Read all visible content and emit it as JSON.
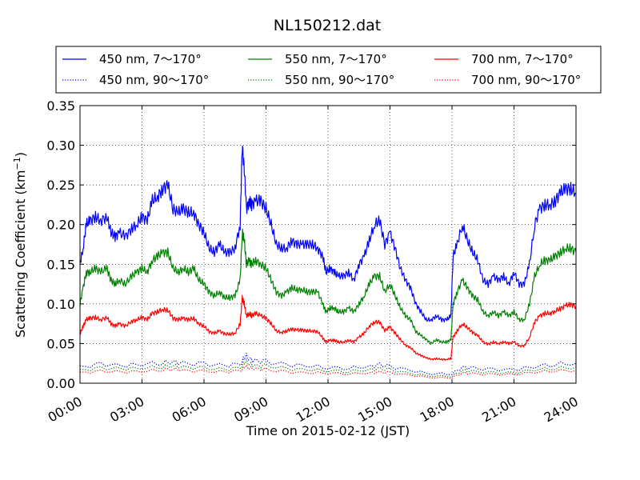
{
  "chart_data": {
    "type": "line",
    "title": "NL150212.dat",
    "xlabel": "Time on 2015-02-12 (JST)",
    "ylabel": "Scattering Coefficient (km",
    "ylabel_sup": "−1",
    "ylabel_close": ")",
    "xlim": [
      0,
      24
    ],
    "ylim": [
      0,
      0.35
    ],
    "grid": true,
    "legend_position": "top, outside plot, 3 columns",
    "x_ticks": [
      0,
      3,
      6,
      9,
      12,
      15,
      18,
      21,
      24
    ],
    "x_tick_labels": [
      "00:00",
      "03:00",
      "06:00",
      "09:00",
      "12:00",
      "15:00",
      "18:00",
      "21:00",
      "24:00"
    ],
    "y_ticks": [
      0,
      0.05,
      0.1,
      0.15,
      0.2,
      0.25,
      0.3,
      0.35
    ],
    "y_tick_labels": [
      "0.00",
      "0.05",
      "0.10",
      "0.15",
      "0.20",
      "0.25",
      "0.30",
      "0.35"
    ],
    "x_unit": "hour of day",
    "series": [
      {
        "name": "450 nm, 7～170°",
        "color": "#0000ff",
        "style": "solid",
        "x": [
          0,
          0.15,
          0.3,
          0.5,
          0.75,
          1.0,
          1.3,
          1.5,
          1.7,
          1.9,
          2.2,
          2.5,
          2.75,
          3.0,
          3.25,
          3.5,
          3.75,
          4.0,
          4.25,
          4.5,
          4.75,
          5.0,
          5.25,
          5.5,
          5.75,
          6.0,
          6.25,
          6.5,
          6.75,
          7.0,
          7.25,
          7.5,
          7.75,
          7.85,
          7.95,
          8.05,
          8.2,
          8.3,
          8.5,
          8.75,
          9.0,
          9.25,
          9.5,
          9.75,
          10.0,
          10.25,
          10.5,
          10.75,
          11.0,
          11.25,
          11.5,
          11.75,
          11.9,
          12.1,
          12.3,
          12.5,
          12.75,
          13.0,
          13.25,
          13.5,
          13.75,
          14.0,
          14.25,
          14.5,
          14.75,
          15.0,
          15.25,
          15.5,
          15.75,
          16.0,
          16.25,
          16.5,
          16.75,
          17.0,
          17.25,
          17.5,
          17.75,
          17.95,
          18.05,
          18.25,
          18.5,
          18.75,
          19.0,
          19.25,
          19.5,
          19.75,
          20.0,
          20.25,
          20.5,
          20.75,
          21.0,
          21.25,
          21.5,
          21.75,
          22.0,
          22.25,
          22.5,
          22.75,
          23.0,
          23.25,
          23.5,
          23.75,
          24.0
        ],
        "values": [
          0.15,
          0.17,
          0.2,
          0.205,
          0.21,
          0.205,
          0.21,
          0.19,
          0.185,
          0.19,
          0.185,
          0.195,
          0.2,
          0.21,
          0.205,
          0.23,
          0.235,
          0.245,
          0.25,
          0.22,
          0.215,
          0.22,
          0.215,
          0.215,
          0.2,
          0.19,
          0.17,
          0.165,
          0.175,
          0.165,
          0.165,
          0.17,
          0.2,
          0.3,
          0.27,
          0.22,
          0.23,
          0.225,
          0.23,
          0.23,
          0.22,
          0.2,
          0.175,
          0.17,
          0.17,
          0.18,
          0.175,
          0.175,
          0.175,
          0.175,
          0.17,
          0.16,
          0.14,
          0.145,
          0.14,
          0.135,
          0.135,
          0.14,
          0.13,
          0.15,
          0.16,
          0.18,
          0.2,
          0.205,
          0.175,
          0.19,
          0.17,
          0.145,
          0.13,
          0.12,
          0.1,
          0.09,
          0.08,
          0.08,
          0.085,
          0.08,
          0.08,
          0.085,
          0.16,
          0.175,
          0.2,
          0.18,
          0.165,
          0.155,
          0.13,
          0.125,
          0.135,
          0.13,
          0.135,
          0.125,
          0.14,
          0.125,
          0.125,
          0.15,
          0.2,
          0.22,
          0.225,
          0.225,
          0.23,
          0.24,
          0.245,
          0.245,
          0.24
        ]
      },
      {
        "name": "550 nm, 7～170°",
        "color": "#008000",
        "style": "solid",
        "x": [
          0,
          0.15,
          0.3,
          0.5,
          0.75,
          1.0,
          1.3,
          1.5,
          1.7,
          1.9,
          2.2,
          2.5,
          2.75,
          3.0,
          3.25,
          3.5,
          3.75,
          4.0,
          4.25,
          4.5,
          4.75,
          5.0,
          5.25,
          5.5,
          5.75,
          6.0,
          6.25,
          6.5,
          6.75,
          7.0,
          7.25,
          7.5,
          7.75,
          7.85,
          7.95,
          8.05,
          8.2,
          8.3,
          8.5,
          8.75,
          9.0,
          9.25,
          9.5,
          9.75,
          10.0,
          10.25,
          10.5,
          10.75,
          11.0,
          11.25,
          11.5,
          11.75,
          11.9,
          12.1,
          12.3,
          12.5,
          12.75,
          13.0,
          13.25,
          13.5,
          13.75,
          14.0,
          14.25,
          14.5,
          14.75,
          15.0,
          15.25,
          15.5,
          15.75,
          16.0,
          16.25,
          16.5,
          16.75,
          17.0,
          17.25,
          17.5,
          17.75,
          17.95,
          18.05,
          18.25,
          18.5,
          18.75,
          19.0,
          19.25,
          19.5,
          19.75,
          20.0,
          20.25,
          20.5,
          20.75,
          21.0,
          21.25,
          21.5,
          21.75,
          22.0,
          22.25,
          22.5,
          22.75,
          23.0,
          23.25,
          23.5,
          23.75,
          24.0
        ],
        "values": [
          0.1,
          0.12,
          0.14,
          0.14,
          0.145,
          0.14,
          0.145,
          0.13,
          0.125,
          0.13,
          0.125,
          0.135,
          0.14,
          0.145,
          0.14,
          0.155,
          0.16,
          0.165,
          0.165,
          0.145,
          0.14,
          0.145,
          0.14,
          0.145,
          0.13,
          0.125,
          0.115,
          0.11,
          0.115,
          0.108,
          0.108,
          0.11,
          0.13,
          0.19,
          0.18,
          0.15,
          0.155,
          0.15,
          0.155,
          0.15,
          0.145,
          0.13,
          0.115,
          0.11,
          0.115,
          0.12,
          0.118,
          0.118,
          0.115,
          0.115,
          0.115,
          0.1,
          0.09,
          0.095,
          0.095,
          0.09,
          0.09,
          0.095,
          0.09,
          0.1,
          0.11,
          0.125,
          0.135,
          0.135,
          0.115,
          0.125,
          0.11,
          0.095,
          0.085,
          0.08,
          0.065,
          0.06,
          0.055,
          0.05,
          0.055,
          0.052,
          0.052,
          0.055,
          0.1,
          0.115,
          0.13,
          0.12,
          0.11,
          0.105,
          0.09,
          0.085,
          0.09,
          0.085,
          0.09,
          0.085,
          0.09,
          0.08,
          0.08,
          0.1,
          0.135,
          0.15,
          0.155,
          0.155,
          0.16,
          0.165,
          0.17,
          0.17,
          0.165
        ]
      },
      {
        "name": "700 nm, 7～170°",
        "color": "#ff0000",
        "style": "solid",
        "x": [
          0,
          0.15,
          0.3,
          0.5,
          0.75,
          1.0,
          1.3,
          1.5,
          1.7,
          1.9,
          2.2,
          2.5,
          2.75,
          3.0,
          3.25,
          3.5,
          3.75,
          4.0,
          4.25,
          4.5,
          4.75,
          5.0,
          5.25,
          5.5,
          5.75,
          6.0,
          6.25,
          6.5,
          6.75,
          7.0,
          7.25,
          7.5,
          7.75,
          7.85,
          7.95,
          8.05,
          8.2,
          8.3,
          8.5,
          8.75,
          9.0,
          9.25,
          9.5,
          9.75,
          10.0,
          10.25,
          10.5,
          10.75,
          11.0,
          11.25,
          11.5,
          11.75,
          11.9,
          12.1,
          12.3,
          12.5,
          12.75,
          13.0,
          13.25,
          13.5,
          13.75,
          14.0,
          14.25,
          14.5,
          14.75,
          15.0,
          15.25,
          15.5,
          15.75,
          16.0,
          16.25,
          16.5,
          16.75,
          17.0,
          17.25,
          17.5,
          17.75,
          17.95,
          18.05,
          18.25,
          18.5,
          18.75,
          19.0,
          19.25,
          19.5,
          19.75,
          20.0,
          20.25,
          20.5,
          20.75,
          21.0,
          21.25,
          21.5,
          21.75,
          22.0,
          22.25,
          22.5,
          22.75,
          23.0,
          23.25,
          23.5,
          23.75,
          24.0
        ],
        "values": [
          0.062,
          0.072,
          0.08,
          0.082,
          0.083,
          0.08,
          0.083,
          0.075,
          0.072,
          0.075,
          0.072,
          0.078,
          0.08,
          0.083,
          0.08,
          0.088,
          0.09,
          0.093,
          0.092,
          0.082,
          0.08,
          0.082,
          0.08,
          0.082,
          0.075,
          0.072,
          0.065,
          0.063,
          0.066,
          0.062,
          0.062,
          0.063,
          0.075,
          0.107,
          0.1,
          0.085,
          0.088,
          0.085,
          0.088,
          0.085,
          0.082,
          0.075,
          0.066,
          0.064,
          0.066,
          0.068,
          0.067,
          0.067,
          0.066,
          0.066,
          0.065,
          0.057,
          0.052,
          0.054,
          0.054,
          0.052,
          0.052,
          0.054,
          0.052,
          0.058,
          0.063,
          0.072,
          0.077,
          0.077,
          0.066,
          0.071,
          0.063,
          0.055,
          0.048,
          0.045,
          0.038,
          0.035,
          0.032,
          0.03,
          0.031,
          0.03,
          0.03,
          0.031,
          0.058,
          0.066,
          0.075,
          0.07,
          0.064,
          0.06,
          0.052,
          0.049,
          0.052,
          0.05,
          0.052,
          0.05,
          0.052,
          0.047,
          0.047,
          0.058,
          0.077,
          0.085,
          0.088,
          0.088,
          0.091,
          0.094,
          0.098,
          0.099,
          0.097
        ]
      },
      {
        "name": "450 nm, 90～170°",
        "color": "#0000ff",
        "style": "dotted",
        "x": [
          0,
          1,
          2,
          3,
          4,
          4.5,
          5,
          6,
          7,
          7.8,
          8.0,
          8.2,
          8.5,
          9,
          10,
          11,
          12,
          13,
          14,
          14.5,
          15,
          16,
          17,
          18,
          18.5,
          19,
          20,
          21,
          22,
          23,
          24
        ],
        "values": [
          0.02,
          0.024,
          0.022,
          0.024,
          0.026,
          0.027,
          0.025,
          0.024,
          0.022,
          0.025,
          0.035,
          0.03,
          0.028,
          0.027,
          0.023,
          0.022,
          0.02,
          0.019,
          0.021,
          0.023,
          0.021,
          0.016,
          0.012,
          0.012,
          0.02,
          0.019,
          0.017,
          0.017,
          0.021,
          0.024,
          0.025
        ]
      },
      {
        "name": "550 nm, 90～170°",
        "color": "#008000",
        "style": "dotted",
        "x": [
          0,
          1,
          2,
          3,
          4,
          4.5,
          5,
          6,
          7,
          7.8,
          8.0,
          8.2,
          8.5,
          9,
          10,
          11,
          12,
          13,
          14,
          14.5,
          15,
          16,
          17,
          18,
          18.5,
          19,
          20,
          21,
          22,
          23,
          24
        ],
        "values": [
          0.016,
          0.019,
          0.018,
          0.019,
          0.021,
          0.022,
          0.02,
          0.019,
          0.017,
          0.02,
          0.028,
          0.024,
          0.022,
          0.022,
          0.018,
          0.017,
          0.016,
          0.015,
          0.017,
          0.018,
          0.017,
          0.012,
          0.009,
          0.009,
          0.016,
          0.015,
          0.013,
          0.013,
          0.017,
          0.019,
          0.02
        ]
      },
      {
        "name": "700 nm, 90～170°",
        "color": "#ff0000",
        "style": "dotted",
        "x": [
          0,
          1,
          2,
          3,
          4,
          4.5,
          5,
          6,
          7,
          7.8,
          8.0,
          8.2,
          8.5,
          9,
          10,
          11,
          12,
          13,
          14,
          14.5,
          15,
          16,
          17,
          18,
          18.5,
          19,
          20,
          21,
          22,
          23,
          24
        ],
        "values": [
          0.013,
          0.015,
          0.014,
          0.015,
          0.017,
          0.018,
          0.016,
          0.015,
          0.014,
          0.016,
          0.022,
          0.019,
          0.018,
          0.017,
          0.014,
          0.013,
          0.013,
          0.012,
          0.013,
          0.014,
          0.013,
          0.01,
          0.007,
          0.007,
          0.013,
          0.012,
          0.011,
          0.011,
          0.014,
          0.016,
          0.016
        ]
      }
    ]
  }
}
